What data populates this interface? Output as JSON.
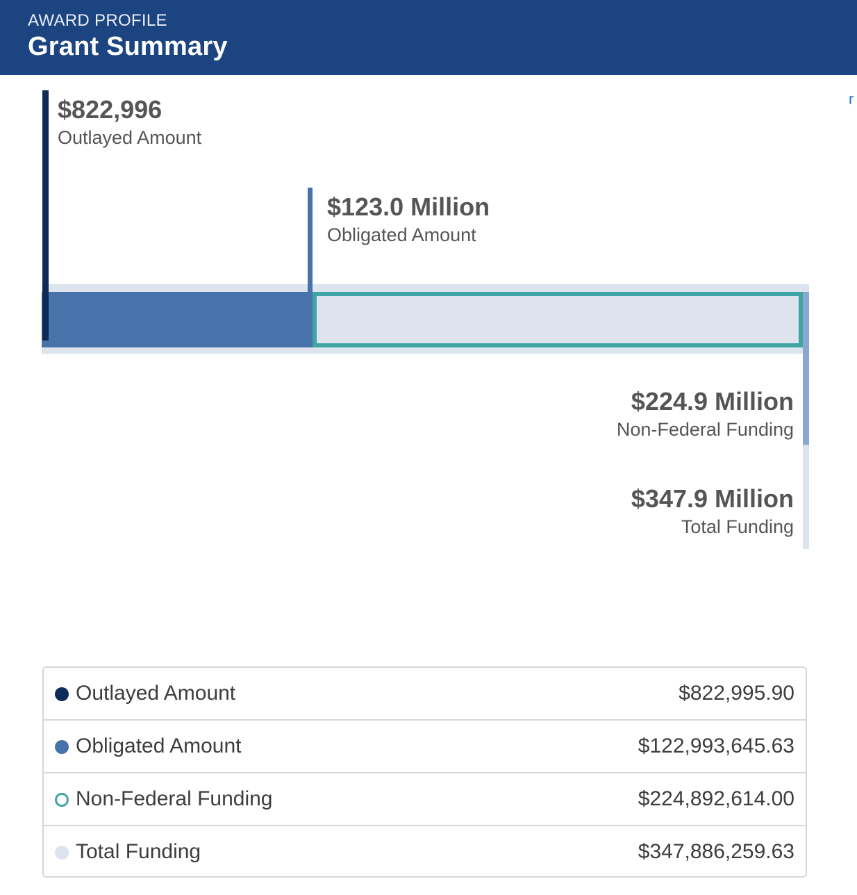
{
  "header": {
    "kicker": "AWARD PROFILE",
    "title": "Grant Summary"
  },
  "edge_link_text": "r",
  "colors": {
    "header_bg": "#1b4480",
    "outlayed": "#0e2a57",
    "obligated": "#4773aa",
    "non_federal": "#40a4a3",
    "total": "#dde4ee"
  },
  "chart_data": {
    "type": "bar",
    "title": "Grant Summary",
    "max_value": 347886259.63,
    "series": [
      {
        "name": "Outlayed Amount",
        "value": 822995.9,
        "display": "$822,996"
      },
      {
        "name": "Obligated Amount",
        "value": 122993645.63,
        "display": "$123.0 Million"
      },
      {
        "name": "Non-Federal Funding",
        "value": 224892614.0,
        "display": "$224.9 Million"
      },
      {
        "name": "Total Funding",
        "value": 347886259.63,
        "display": "$347.9 Million"
      }
    ]
  },
  "chart_labels": {
    "outlayed": {
      "amount": "$822,996",
      "caption": "Outlayed Amount"
    },
    "obligated": {
      "amount": "$123.0 Million",
      "caption": "Obligated Amount"
    },
    "non_federal": {
      "amount": "$224.9 Million",
      "caption": "Non-Federal Funding"
    },
    "total": {
      "amount": "$347.9 Million",
      "caption": "Total Funding"
    }
  },
  "legend": {
    "rows": [
      {
        "label": "Outlayed Amount",
        "value": "$822,995.90",
        "marker": "filled",
        "color": "#0e2a57"
      },
      {
        "label": "Obligated Amount",
        "value": "$122,993,645.63",
        "marker": "filled",
        "color": "#4773aa"
      },
      {
        "label": "Non-Federal Funding",
        "value": "$224,892,614.00",
        "marker": "ring",
        "color": "#40a4a3"
      },
      {
        "label": "Total Funding",
        "value": "$347,886,259.63",
        "marker": "filled",
        "color": "#dde4ee"
      }
    ]
  }
}
